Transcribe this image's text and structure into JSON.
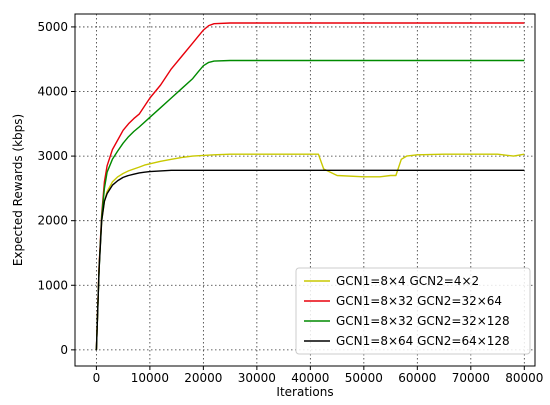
{
  "chart_data": {
    "type": "line",
    "title": "",
    "xlabel": "Iterations",
    "ylabel": "Expected Rewards (kbps)",
    "xlim": [
      -4000,
      82000
    ],
    "ylim": [
      -250,
      5200
    ],
    "xticks": [
      0,
      10000,
      20000,
      30000,
      40000,
      50000,
      60000,
      70000,
      80000
    ],
    "yticks": [
      0,
      1000,
      2000,
      3000,
      4000,
      5000
    ],
    "xtick_labels": [
      "0",
      "10000",
      "20000",
      "30000",
      "40000",
      "50000",
      "60000",
      "70000",
      "80000"
    ],
    "ytick_labels": [
      "0",
      "1000",
      "2000",
      "3000",
      "4000",
      "5000"
    ],
    "grid": true,
    "legend_position": "lower-right",
    "series": [
      {
        "name": "GCN1=8×4    GCN2=4×2",
        "color": "#c8c800",
        "x": [
          0,
          500,
          1000,
          1500,
          2000,
          3000,
          4000,
          5000,
          6000,
          7000,
          8000,
          9000,
          10000,
          12000,
          14000,
          16000,
          18000,
          20000,
          22000,
          25000,
          30000,
          35000,
          40000,
          41500,
          42500,
          45000,
          50000,
          53000,
          55000,
          56000,
          57000,
          58000,
          60000,
          65000,
          70000,
          75000,
          78000,
          80000
        ],
        "y": [
          0,
          1300,
          2000,
          2300,
          2450,
          2600,
          2680,
          2730,
          2770,
          2800,
          2830,
          2860,
          2880,
          2920,
          2950,
          2980,
          3000,
          3010,
          3020,
          3030,
          3030,
          3030,
          3030,
          3030,
          2800,
          2700,
          2680,
          2680,
          2700,
          2700,
          2950,
          3000,
          3020,
          3030,
          3030,
          3030,
          3000,
          3030
        ]
      },
      {
        "name": "GCN1=8×32 GCN2=32×64",
        "color": "#e8000b",
        "x": [
          0,
          500,
          1000,
          1500,
          2000,
          3000,
          4000,
          5000,
          6000,
          7000,
          8000,
          10000,
          12000,
          14000,
          16000,
          18000,
          19000,
          20000,
          21000,
          22000,
          25000,
          30000,
          40000,
          50000,
          60000,
          70000,
          80000
        ],
        "y": [
          0,
          1300,
          2100,
          2600,
          2850,
          3100,
          3250,
          3400,
          3500,
          3580,
          3650,
          3900,
          4100,
          4350,
          4550,
          4750,
          4850,
          4950,
          5020,
          5050,
          5060,
          5060,
          5060,
          5060,
          5060,
          5060,
          5060
        ]
      },
      {
        "name": "GCN1=8×32 GCN2=32×128",
        "color": "#008a00",
        "x": [
          0,
          500,
          1000,
          1500,
          2000,
          3000,
          4000,
          5000,
          6000,
          7000,
          8000,
          10000,
          12000,
          14000,
          16000,
          18000,
          19000,
          20000,
          21000,
          22000,
          25000,
          30000,
          40000,
          50000,
          60000,
          70000,
          80000
        ],
        "y": [
          0,
          1250,
          2050,
          2500,
          2750,
          2950,
          3080,
          3200,
          3300,
          3380,
          3450,
          3600,
          3750,
          3900,
          4050,
          4200,
          4300,
          4400,
          4450,
          4470,
          4480,
          4480,
          4480,
          4480,
          4480,
          4480,
          4480
        ]
      },
      {
        "name": "GCN1=8×64 GCN2=64×128",
        "color": "#000000",
        "x": [
          0,
          500,
          1000,
          1500,
          2000,
          3000,
          4000,
          5000,
          6000,
          7000,
          8000,
          9000,
          10000,
          12000,
          14000,
          16000,
          18000,
          20000,
          25000,
          30000,
          40000,
          50000,
          60000,
          70000,
          80000
        ],
        "y": [
          0,
          1250,
          2000,
          2300,
          2420,
          2550,
          2620,
          2670,
          2700,
          2720,
          2740,
          2750,
          2760,
          2770,
          2780,
          2780,
          2780,
          2780,
          2780,
          2780,
          2780,
          2780,
          2780,
          2780,
          2780
        ]
      }
    ]
  }
}
